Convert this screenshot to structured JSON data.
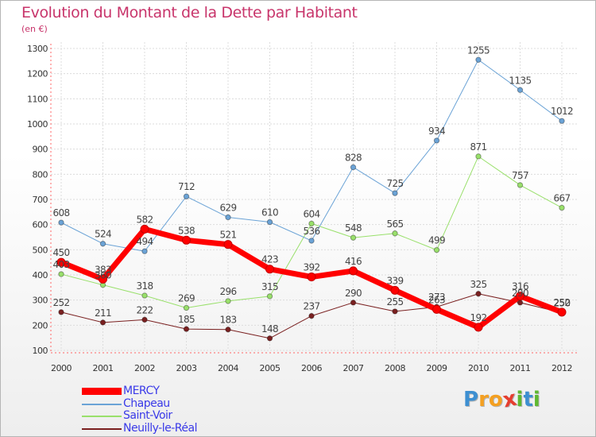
{
  "title": "Evolution du Montant de la Dette par Habitant",
  "subtitle": "(en €)",
  "logo": {
    "letters": [
      "P",
      "r",
      "o",
      "x",
      "i",
      "t",
      "i"
    ],
    "colors": [
      "#3d8fd1",
      "#f4a021",
      "#f4a021",
      "#e53e2f",
      "#5fb830",
      "#3d8fd1",
      "#5fb830"
    ]
  },
  "chart_data": {
    "type": "line",
    "title": "Evolution du Montant de la Dette par Habitant",
    "ylabel": "(en €)",
    "xlabel": "",
    "categories": [
      "2000",
      "2001",
      "2002",
      "2003",
      "2004",
      "2005",
      "2006",
      "2007",
      "2008",
      "2009",
      "2010",
      "2011",
      "2012"
    ],
    "ylim": [
      100,
      1300
    ],
    "yticks": [
      "100",
      "200",
      "300",
      "400",
      "500",
      "600",
      "700",
      "800",
      "900",
      "1000",
      "1100",
      "1200",
      "1300"
    ],
    "grid": true,
    "legend_position": "bottom-left",
    "series": [
      {
        "name": "Neuilly-le-Réal",
        "color": "#7a2020",
        "width": 1,
        "values": [
          252,
          211,
          222,
          185,
          183,
          148,
          237,
          290,
          255,
          273,
          325,
          290,
          250
        ],
        "labels": [
          "252",
          "211",
          "222",
          "185",
          "183",
          "148",
          "237",
          "290",
          "255",
          "273",
          "325",
          "290",
          "250"
        ]
      },
      {
        "name": "Saint-Voir",
        "color": "#99e06b",
        "width": 1,
        "values": [
          403,
          360,
          318,
          269,
          296,
          315,
          604,
          548,
          565,
          499,
          871,
          757,
          667
        ],
        "labels": [
          "403",
          "360",
          "318",
          "269",
          "296",
          "315",
          "",
          "548",
          "565",
          "499",
          "871",
          "757",
          "667"
        ]
      },
      {
        "name": "Chapeau",
        "color": "#6ba3d6",
        "width": 1,
        "values": [
          608,
          524,
          494,
          712,
          629,
          610,
          536,
          828,
          725,
          934,
          1255,
          1135,
          1012
        ],
        "labels": [
          "608",
          "524",
          "494",
          "712",
          "629",
          "610",
          "536",
          "828",
          "725",
          "934",
          "1255",
          "1135",
          "1012"
        ]
      },
      {
        "name": "MERCY",
        "color": "#ff0000",
        "width": 7,
        "values": [
          450,
          383,
          582,
          538,
          521,
          423,
          392,
          416,
          339,
          263,
          192,
          316,
          252
        ],
        "labels": [
          "450",
          "383",
          "582",
          "538",
          "521",
          "423",
          "392",
          "416",
          "339",
          "263",
          "192",
          "316",
          "252"
        ]
      }
    ],
    "extra_labels": [
      {
        "series": "Saint-Voir",
        "index": 6,
        "text": "604"
      }
    ]
  }
}
